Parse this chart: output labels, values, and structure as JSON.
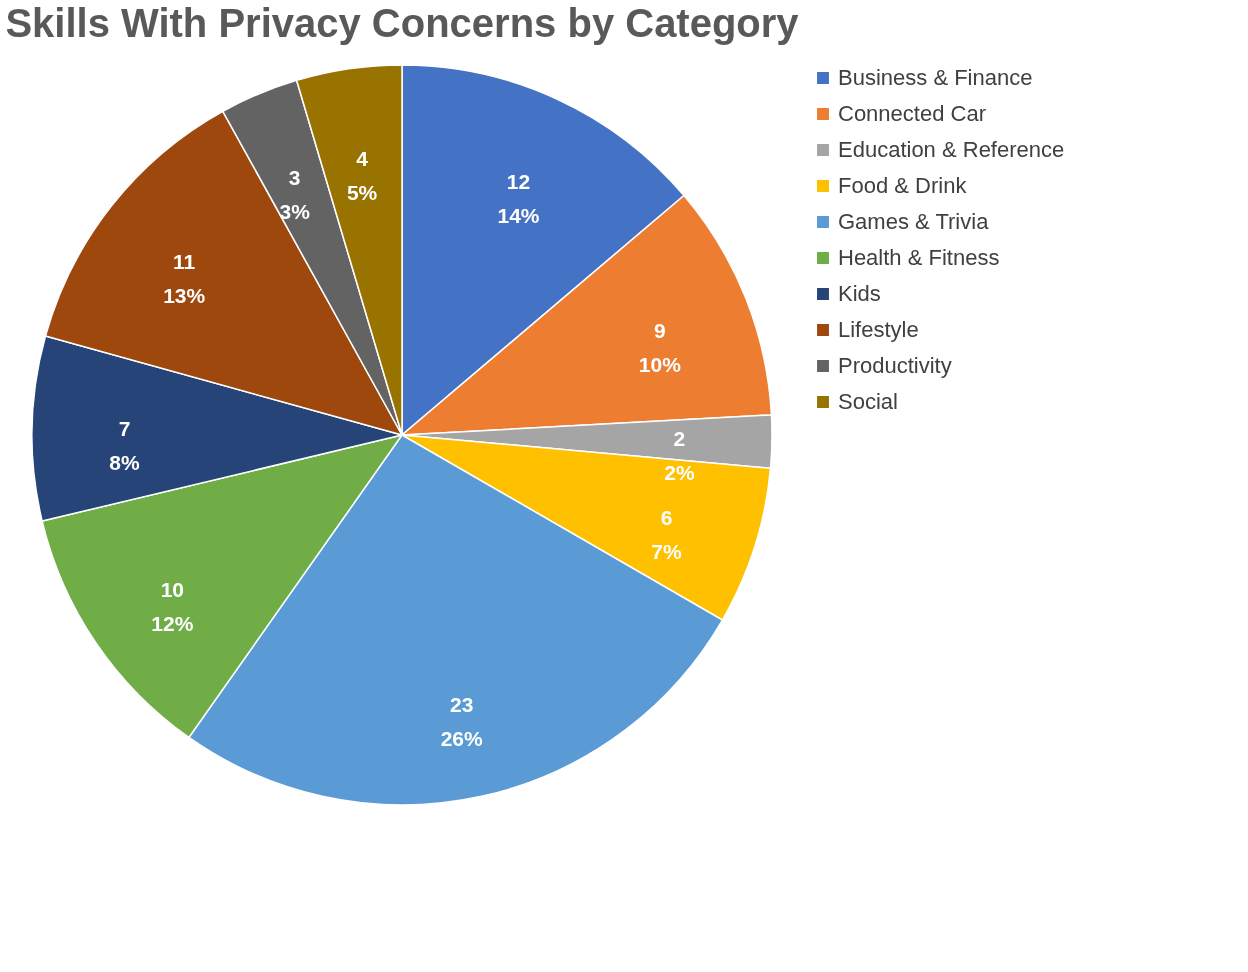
{
  "chart_data": {
    "type": "pie",
    "title": "Skills With Privacy Concerns by Category",
    "categories": [
      "Business & Finance",
      "Connected Car",
      "Education & Reference",
      "Food & Drink",
      "Games & Trivia",
      "Health & Fitness",
      "Kids",
      "Lifestyle",
      "Productivity",
      "Social"
    ],
    "values": [
      12,
      9,
      2,
      6,
      23,
      10,
      7,
      11,
      3,
      4
    ],
    "colors": [
      "#4472c4",
      "#ed7d31",
      "#a5a5a5",
      "#ffc000",
      "#5b9bd5",
      "#70ad47",
      "#264478",
      "#9e480e",
      "#636363",
      "#997300"
    ],
    "value_labels": [
      "12\n14%",
      "9\n10%",
      "2\n2%",
      "6\n7%",
      "23\n26%",
      "10\n12%",
      "7\n8%",
      "11\n13%",
      "3\n3%",
      "4\n5%"
    ],
    "legend": "right"
  }
}
